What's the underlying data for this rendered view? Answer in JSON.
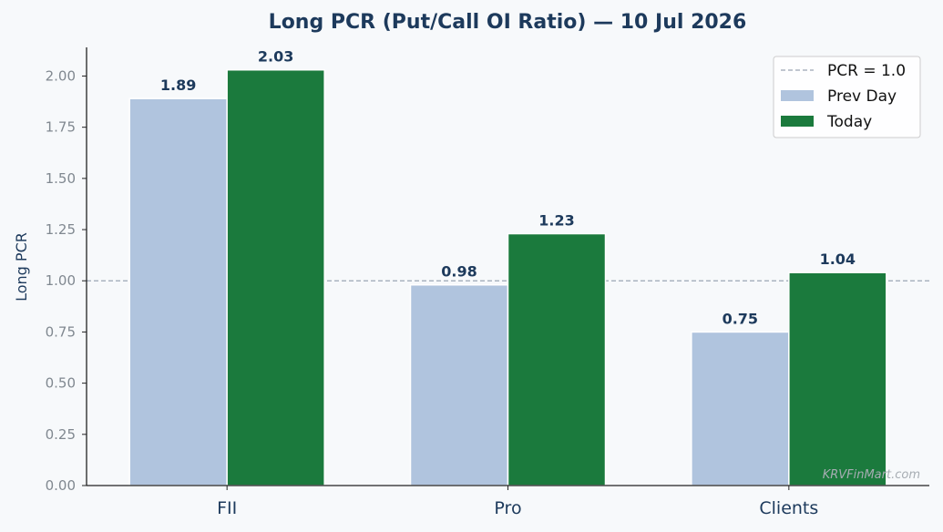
{
  "chart_data": {
    "type": "bar",
    "title": "Long PCR (Put/Call OI Ratio) — 10 Jul 2026",
    "xlabel": "",
    "ylabel": "Long PCR",
    "categories": [
      "FII",
      "Pro",
      "Clients"
    ],
    "series": [
      {
        "name": "Prev Day",
        "values": [
          1.89,
          0.98,
          0.75
        ],
        "color": "#b0c4de"
      },
      {
        "name": "Today",
        "values": [
          2.03,
          1.23,
          1.04
        ],
        "color": "#1b7a3d"
      }
    ],
    "data_labels": [
      [
        "1.89",
        "0.98",
        "0.75"
      ],
      [
        "2.03",
        "1.23",
        "1.04"
      ]
    ],
    "ylim": [
      0,
      2.14
    ],
    "yticks": [
      "0.00",
      "0.25",
      "0.50",
      "0.75",
      "1.00",
      "1.25",
      "1.50",
      "1.75",
      "2.00"
    ],
    "reference_line": {
      "value": 1.0,
      "label": "PCR = 1.0",
      "color": "#9aa5b5",
      "style": "dashed"
    },
    "legend": {
      "placement": "top-right",
      "entries": [
        "PCR = 1.0",
        "Prev Day",
        "Today"
      ]
    },
    "grid": false,
    "watermark": "KRVFinMart.com"
  }
}
